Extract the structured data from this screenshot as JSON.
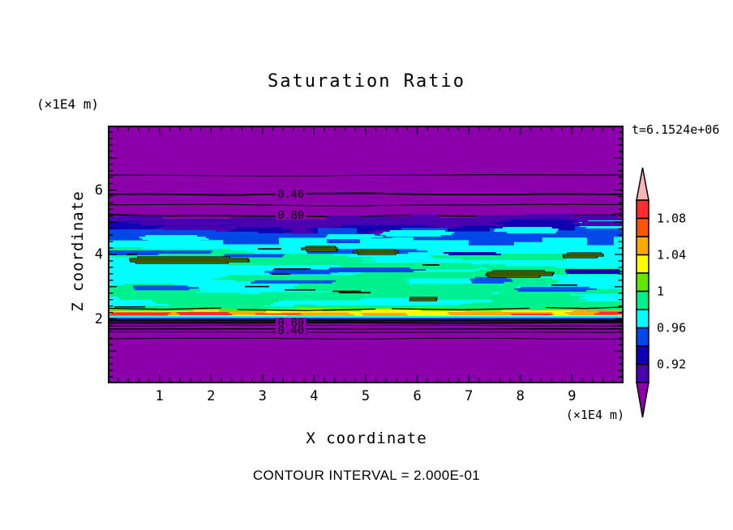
{
  "title": "Saturation Ratio",
  "timestamp_label": "t=6.1524e+06",
  "footer_note": "CONTOUR INTERVAL = 2.000E-01",
  "axes": {
    "x": {
      "label": "X coordinate",
      "unit": "(×1E4 m)",
      "min": 0,
      "max": 10,
      "tick_labels": [
        "1",
        "2",
        "3",
        "4",
        "5",
        "6",
        "7",
        "8",
        "9"
      ],
      "minor_tick_step": 0.2
    },
    "z": {
      "label": "Z coordinate",
      "unit": "(×1E4 m)",
      "min": 0,
      "max": 8,
      "tick_labels": [
        "2",
        "4",
        "6"
      ],
      "minor_tick_step": 0.2
    }
  },
  "colorbar": {
    "labels": [
      "1.08",
      "1.04",
      "1",
      "0.96",
      "0.92"
    ],
    "label_values": [
      1.08,
      1.04,
      1.0,
      0.96,
      0.92
    ],
    "top_value": 1.1,
    "step": 0.02
  },
  "contour_labels": [
    {
      "text": "0.40",
      "x": 3.55,
      "z": 5.875
    },
    {
      "text": "0.80",
      "x": 3.55,
      "z": 5.225
    },
    {
      "text": "0.80",
      "x": 3.55,
      "z": 1.885
    },
    {
      "text": "0.40",
      "x": 3.55,
      "z": 1.645
    }
  ],
  "chart_data": {
    "type": "filled_contour",
    "title": "Saturation Ratio",
    "time_annotation": "t=6.1524e+06",
    "x_axis": {
      "label": "X coordinate",
      "unit": "(×1E4 m)",
      "range": [
        0,
        10
      ]
    },
    "z_axis": {
      "label": "Z coordinate",
      "unit": "(×1E4 m)",
      "range": [
        0,
        8
      ]
    },
    "contour_interval": 0.2,
    "color_scale": {
      "under": {
        "max": 0.9,
        "color": "#8C00AC"
      },
      "bins": [
        {
          "from": 0.9,
          "to": 0.92,
          "color": "#4A00AE"
        },
        {
          "from": 0.92,
          "to": 0.94,
          "color": "#1000B4"
        },
        {
          "from": 0.94,
          "to": 0.96,
          "color": "#0049E8"
        },
        {
          "from": 0.96,
          "to": 0.98,
          "color": "#00FFFF"
        },
        {
          "from": 0.98,
          "to": 1.0,
          "color": "#00F08C"
        },
        {
          "from": 1.0,
          "to": 1.02,
          "color": "#64E600"
        },
        {
          "from": 1.02,
          "to": 1.04,
          "color": "#FFFF00"
        },
        {
          "from": 1.04,
          "to": 1.06,
          "color": "#FFA800"
        },
        {
          "from": 1.06,
          "to": 1.08,
          "color": "#FF5400"
        },
        {
          "from": 1.08,
          "to": 1.1,
          "color": "#FF2D2D"
        }
      ],
      "over": {
        "min": 1.1,
        "color": "#FFB4B4"
      }
    },
    "labeled_contours": [
      {
        "value": 0.4,
        "x": 3.55,
        "z": 5.875
      },
      {
        "value": 0.8,
        "x": 3.55,
        "z": 5.225
      },
      {
        "value": 0.8,
        "x": 3.55,
        "z": 1.885
      },
      {
        "value": 0.4,
        "x": 3.55,
        "z": 1.645
      }
    ],
    "horizontal_structure": [
      {
        "z_from": 6.5,
        "z_to": 8.0,
        "ratio_from": 0.0,
        "ratio_to": 0.2,
        "appearance": "solid purple (dry zone, under-range)"
      },
      {
        "z_from": 5.2,
        "z_to": 6.5,
        "ratio_from": 0.2,
        "ratio_to": 0.8,
        "appearance": "purple with widely spaced contour lines 0.2/0.4/0.6/0.8"
      },
      {
        "z_from": 4.4,
        "z_to": 5.2,
        "ratio_from": 0.8,
        "ratio_to": 0.96,
        "appearance": "streaky indigo / navy / blue transition band"
      },
      {
        "z_from": 2.15,
        "z_to": 4.4,
        "ratio_from": 0.96,
        "ratio_to": 1.02,
        "appearance": "cyan with spring-green streaks and small >1.0 yellow-green lenses"
      },
      {
        "z_from": 2.02,
        "z_to": 2.15,
        "ratio_from": 1.02,
        "ratio_to": 1.1,
        "appearance": "thin supersaturated layer: yellow / orange / red streaks"
      },
      {
        "z_from": 1.4,
        "z_to": 2.02,
        "ratio_from": 0.2,
        "ratio_to": 1.0,
        "appearance": "sharp drop, bunched contours labeled 0.80 / 0.40"
      },
      {
        "z_from": 0.0,
        "z_to": 1.4,
        "ratio_from": 0.0,
        "ratio_to": 0.2,
        "appearance": "solid purple (dry zone, under-range)"
      }
    ]
  }
}
